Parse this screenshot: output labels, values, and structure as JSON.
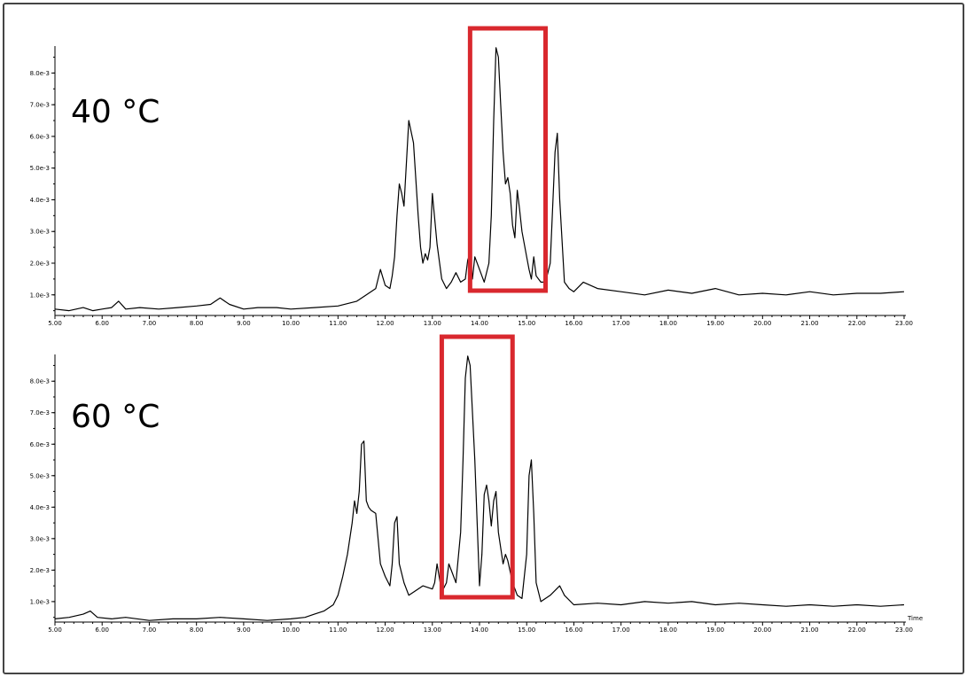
{
  "colors": {
    "trace": "#000000",
    "highlight": "#d9282e",
    "frame": "#444444"
  },
  "chart_data": [
    {
      "type": "line",
      "panel_label": "40 °C",
      "xlabel": "",
      "ylabel": "",
      "xlim": [
        5,
        23
      ],
      "ylim": [
        0.00035,
        0.00885
      ],
      "xticks": [
        "5.00",
        "6.00",
        "7.00",
        "8.00",
        "9.00",
        "10.00",
        "11.00",
        "12.00",
        "13.00",
        "14.00",
        "15.00",
        "16.00",
        "17.00",
        "18.00",
        "19.00",
        "20.00",
        "21.00",
        "22.00",
        "23.00"
      ],
      "yticks": [
        {
          "value": 0.001,
          "label": "1.0e-3"
        },
        {
          "value": 0.002,
          "label": "2.0e-3"
        },
        {
          "value": 0.003,
          "label": "3.0e-3"
        },
        {
          "value": 0.004,
          "label": "4.0e-3"
        },
        {
          "value": 0.005,
          "label": "5.0e-3"
        },
        {
          "value": 0.006,
          "label": "6.0e-3"
        },
        {
          "value": 0.007,
          "label": "7.0e-3"
        },
        {
          "value": 0.008,
          "label": "8.0e-3"
        }
      ],
      "highlight_range": [
        13.8,
        15.4
      ],
      "series": [
        {
          "x": [
            5.0,
            5.3,
            5.6,
            5.8,
            6.0,
            6.2,
            6.35,
            6.5,
            6.8,
            7.2,
            7.6,
            8.0,
            8.3,
            8.5,
            8.7,
            9.0,
            9.3,
            9.7,
            10.0,
            10.5,
            11.0,
            11.4,
            11.6,
            11.8,
            11.9,
            12.0,
            12.1,
            12.15,
            12.2,
            12.25,
            12.3,
            12.35,
            12.4,
            12.5,
            12.6,
            12.7,
            12.75,
            12.8,
            12.85,
            12.9,
            12.95,
            13.0,
            13.1,
            13.2,
            13.3,
            13.4,
            13.5,
            13.6,
            13.7,
            13.75,
            13.8,
            13.85,
            13.9,
            14.0,
            14.1,
            14.2,
            14.25,
            14.3,
            14.35,
            14.4,
            14.45,
            14.5,
            14.55,
            14.6,
            14.65,
            14.7,
            14.75,
            14.8,
            14.85,
            14.9,
            15.0,
            15.05,
            15.1,
            15.15,
            15.2,
            15.3,
            15.4,
            15.5,
            15.6,
            15.65,
            15.7,
            15.8,
            15.9,
            16.0,
            16.2,
            16.5,
            17.0,
            17.5,
            18.0,
            18.5,
            19.0,
            19.5,
            20.0,
            20.5,
            21.0,
            21.5,
            22.0,
            22.5,
            23.0
          ],
          "y": [
            0.00055,
            0.0005,
            0.0006,
            0.0005,
            0.00055,
            0.0006,
            0.0008,
            0.00055,
            0.0006,
            0.00055,
            0.0006,
            0.00065,
            0.0007,
            0.0009,
            0.0007,
            0.00055,
            0.0006,
            0.0006,
            0.00055,
            0.0006,
            0.00065,
            0.0008,
            0.001,
            0.0012,
            0.0018,
            0.0013,
            0.0012,
            0.0016,
            0.0022,
            0.0035,
            0.0045,
            0.0042,
            0.0038,
            0.0065,
            0.0058,
            0.0035,
            0.0025,
            0.002,
            0.0023,
            0.0021,
            0.0025,
            0.0042,
            0.0026,
            0.0015,
            0.0012,
            0.0014,
            0.0017,
            0.0014,
            0.0015,
            0.0021,
            0.0023,
            0.0015,
            0.0022,
            0.0018,
            0.0014,
            0.002,
            0.0035,
            0.0065,
            0.0088,
            0.0085,
            0.007,
            0.0055,
            0.0045,
            0.0047,
            0.0042,
            0.0032,
            0.0028,
            0.0043,
            0.0037,
            0.003,
            0.0022,
            0.0018,
            0.0015,
            0.0022,
            0.0016,
            0.0014,
            0.0014,
            0.002,
            0.0055,
            0.0061,
            0.004,
            0.0014,
            0.0012,
            0.0011,
            0.0014,
            0.0012,
            0.0011,
            0.001,
            0.00115,
            0.00105,
            0.0012,
            0.001,
            0.00105,
            0.001,
            0.0011,
            0.001,
            0.00105,
            0.00105,
            0.0011
          ]
        }
      ]
    },
    {
      "type": "line",
      "panel_label": "60 °C",
      "xlabel": "Time",
      "ylabel": "",
      "xlim": [
        5,
        23
      ],
      "ylim": [
        0.00035,
        0.00885
      ],
      "xticks": [
        "5.00",
        "6.00",
        "7.00",
        "8.00",
        "9.00",
        "10.00",
        "11.00",
        "12.00",
        "13.00",
        "14.00",
        "15.00",
        "16.00",
        "17.00",
        "18.00",
        "19.00",
        "20.00",
        "21.00",
        "22.00",
        "23.00"
      ],
      "yticks": [
        {
          "value": 0.001,
          "label": "1.0e-3"
        },
        {
          "value": 0.002,
          "label": "2.0e-3"
        },
        {
          "value": 0.003,
          "label": "3.0e-3"
        },
        {
          "value": 0.004,
          "label": "4.0e-3"
        },
        {
          "value": 0.005,
          "label": "5.0e-3"
        },
        {
          "value": 0.006,
          "label": "6.0e-3"
        },
        {
          "value": 0.007,
          "label": "7.0e-3"
        },
        {
          "value": 0.008,
          "label": "8.0e-3"
        }
      ],
      "highlight_range": [
        13.2,
        14.7
      ],
      "series": [
        {
          "x": [
            5.0,
            5.3,
            5.6,
            5.75,
            5.9,
            6.2,
            6.5,
            7.0,
            7.5,
            8.0,
            8.5,
            9.0,
            9.5,
            10.0,
            10.3,
            10.5,
            10.7,
            10.9,
            11.0,
            11.1,
            11.2,
            11.3,
            11.35,
            11.4,
            11.45,
            11.5,
            11.55,
            11.6,
            11.65,
            11.7,
            11.8,
            11.9,
            12.0,
            12.1,
            12.15,
            12.2,
            12.25,
            12.3,
            12.4,
            12.5,
            12.6,
            12.8,
            13.0,
            13.05,
            13.1,
            13.2,
            13.3,
            13.35,
            13.4,
            13.5,
            13.6,
            13.65,
            13.7,
            13.75,
            13.8,
            13.9,
            14.0,
            14.05,
            14.1,
            14.15,
            14.2,
            14.25,
            14.3,
            14.35,
            14.4,
            14.5,
            14.55,
            14.6,
            14.7,
            14.8,
            14.9,
            15.0,
            15.05,
            15.1,
            15.15,
            15.2,
            15.3,
            15.5,
            15.7,
            15.8,
            16.0,
            16.5,
            17.0,
            17.5,
            18.0,
            18.5,
            19.0,
            19.5,
            20.0,
            20.5,
            21.0,
            21.5,
            22.0,
            22.5,
            23.0
          ],
          "y": [
            0.00045,
            0.0005,
            0.0006,
            0.0007,
            0.0005,
            0.00045,
            0.0005,
            0.0004,
            0.00045,
            0.00045,
            0.0005,
            0.00045,
            0.0004,
            0.00045,
            0.0005,
            0.0006,
            0.0007,
            0.0009,
            0.0012,
            0.0018,
            0.0025,
            0.0035,
            0.0042,
            0.0038,
            0.0045,
            0.006,
            0.0061,
            0.0042,
            0.004,
            0.0039,
            0.0038,
            0.0022,
            0.0018,
            0.0015,
            0.0022,
            0.0035,
            0.0037,
            0.0022,
            0.0016,
            0.0012,
            0.0013,
            0.0015,
            0.0014,
            0.0016,
            0.0022,
            0.0013,
            0.0016,
            0.0022,
            0.002,
            0.0016,
            0.0032,
            0.0055,
            0.0081,
            0.0088,
            0.0085,
            0.0055,
            0.0015,
            0.0025,
            0.0044,
            0.0047,
            0.0042,
            0.0034,
            0.0042,
            0.0045,
            0.0032,
            0.0022,
            0.0025,
            0.0023,
            0.0016,
            0.0012,
            0.0011,
            0.0025,
            0.005,
            0.0055,
            0.0038,
            0.0016,
            0.001,
            0.0012,
            0.0015,
            0.0012,
            0.0009,
            0.00095,
            0.0009,
            0.001,
            0.00095,
            0.001,
            0.0009,
            0.00095,
            0.0009,
            0.00085,
            0.0009,
            0.00085,
            0.0009,
            0.00085,
            0.0009
          ]
        }
      ]
    }
  ]
}
